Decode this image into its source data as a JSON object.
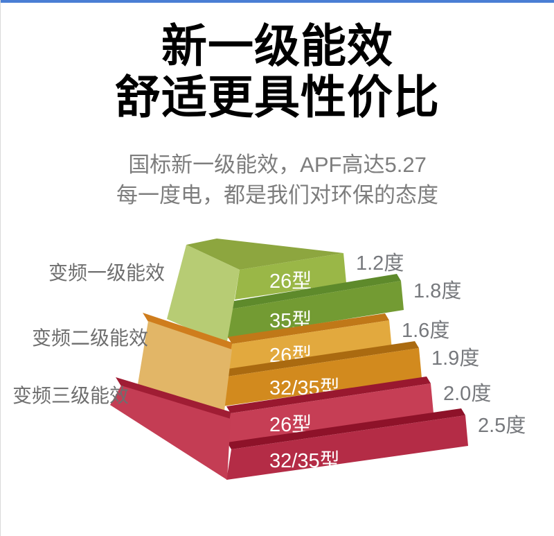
{
  "window": {
    "top_accent_color": "#4a7ed4"
  },
  "header": {
    "title_line1": "新一级能效",
    "title_line2": "舒适更具性价比",
    "subtitle_line1": "国标新一级能效，APF高达5.27",
    "subtitle_line2": "每一度电，都是我们对环保的态度"
  },
  "chart_data": {
    "type": "bar",
    "variant": "3d-stepped-pyramid",
    "title": "",
    "unit": "度",
    "grid": false,
    "legend_position": "none",
    "value_range": [
      1.2,
      2.5
    ],
    "text_colors": {
      "value_label": "#76787c",
      "group_label": "#6e6e6e",
      "bar_label": "#ffffff"
    },
    "groups": [
      {
        "label": "变频一级能效",
        "face_color": "#b7cc74",
        "band_color": "#8da63f",
        "bars": [
          {
            "model": "26型",
            "value": 1.2,
            "value_label": "1.2度",
            "front_color": "#9ab747",
            "top_color": "#8da63f"
          },
          {
            "model": "35型",
            "value": 1.8,
            "value_label": "1.8度",
            "front_color": "#739b33",
            "top_color": "#5e8a2b"
          }
        ]
      },
      {
        "label": "变频二级能效",
        "face_color": "#e2b667",
        "band_color": "#cf7d1d",
        "bars": [
          {
            "model": "26型",
            "value": 1.6,
            "value_label": "1.6度",
            "front_color": "#e2a93e",
            "top_color": "#c07818"
          },
          {
            "model": "32/35型",
            "value": 1.9,
            "value_label": "1.9度",
            "front_color": "#d28a1e",
            "top_color": "#aa6a10"
          }
        ]
      },
      {
        "label": "变频三级能效",
        "face_color": "#c43d54",
        "band_color": "#a01d34",
        "bars": [
          {
            "model": "26型",
            "value": 2.0,
            "value_label": "2.0度",
            "front_color": "#c63e55",
            "top_color": "#99182f"
          },
          {
            "model": "32/35型",
            "value": 2.5,
            "value_label": "2.5度",
            "front_color": "#b42c46",
            "top_color": "#8e1229"
          }
        ]
      }
    ]
  }
}
